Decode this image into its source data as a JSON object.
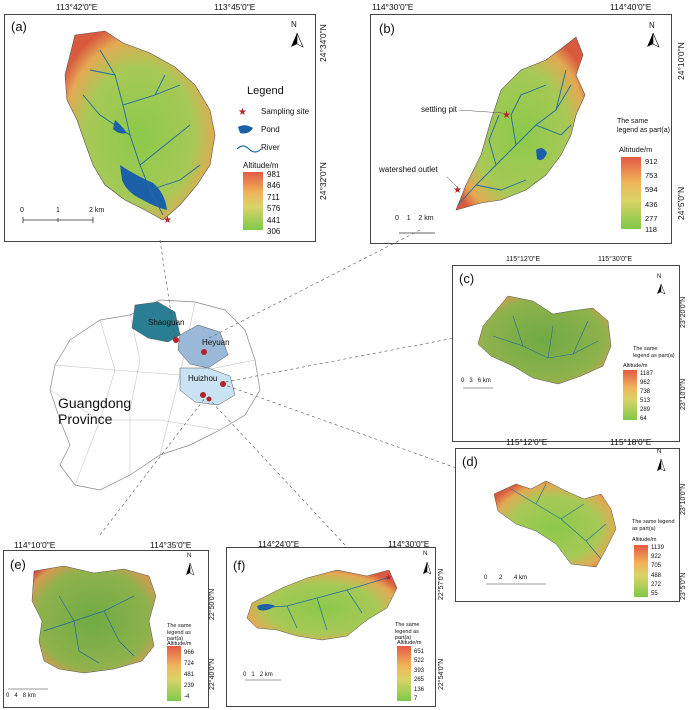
{
  "colors": {
    "ramp_high": "#e8604c",
    "ramp_mid": "#f3d36a",
    "ramp_low": "#7ccb45",
    "river": "#1f6aa5",
    "pond": "#1a5fa8",
    "star": "#b2232a",
    "shaoguan": "#2a7e93",
    "heyuan": "#9ab8d8",
    "huizhou": "#c9e3f4"
  },
  "panel_a": {
    "label": "(a)",
    "top_coords": [
      "113°42'0\"E",
      "113°45'0\"E"
    ],
    "right_coords": [
      "24°34'0\"N",
      "24°32'0\"N"
    ],
    "legend_title": "Legend",
    "legend_items": [
      "Sampling site",
      "Pond",
      "River"
    ],
    "altitude_title": "Altitude/m",
    "altitude_ticks": [
      "981",
      "846",
      "711",
      "576",
      "441",
      "306"
    ],
    "scale": [
      "0",
      "1",
      "2 km"
    ]
  },
  "panel_b": {
    "label": "(b)",
    "top_coords": [
      "114°30'0\"E",
      "114°40'0\"E"
    ],
    "right_coords": [
      "24°10'0\"N",
      "24°5'0\"N"
    ],
    "annotations": [
      "settling pit",
      "watershed outlet"
    ],
    "legend_note": "The same legend as part(a)",
    "altitude_title": "Altitude/m",
    "altitude_ticks": [
      "912",
      "753",
      "594",
      "436",
      "277",
      "118"
    ],
    "scale": [
      "0",
      "1",
      "2 km"
    ]
  },
  "panel_c": {
    "label": "(c)",
    "top_coords": [
      "115°12'0\"E",
      "115°30'0\"E"
    ],
    "right_coords": [
      "23°20'0\"N",
      "23°10'0\"N"
    ],
    "legend_note": "The same legend as part(a)",
    "altitude_title": "Altitude/m",
    "altitude_ticks": [
      "1187",
      "962",
      "738",
      "513",
      "289",
      "64"
    ],
    "scale": [
      "0",
      "3",
      "6 km"
    ]
  },
  "panel_d": {
    "label": "(d)",
    "top_coords": [
      "115°12'0\"E",
      "115°18'0\"E"
    ],
    "right_coords": [
      "23°10'0\"N",
      "23°5'0\"N"
    ],
    "legend_note": "The same legend as part(a)",
    "altitude_title": "Altitude/m",
    "altitude_ticks": [
      "1139",
      "922",
      "705",
      "488",
      "272",
      "55"
    ],
    "scale": [
      "0",
      "2",
      "4 km"
    ]
  },
  "panel_e": {
    "label": "(e)",
    "top_coords": [
      "114°10'0\"E",
      "114°35'0\"E"
    ],
    "right_coords": [
      "22°50'0\"N",
      "22°40'0\"N"
    ],
    "legend_note": "The same legend as part(a)",
    "altitude_title": "Altitude/m",
    "altitude_ticks": [
      "966",
      "724",
      "481",
      "239",
      "-4"
    ],
    "scale": [
      "0",
      "4",
      "8 km"
    ]
  },
  "panel_f": {
    "label": "(f)",
    "top_coords": [
      "114°24'0\"E",
      "114°30'0\"E"
    ],
    "right_coords": [
      "22°57'0\"N",
      "22°54'0\"N"
    ],
    "legend_note": "The same legend as part(a)",
    "altitude_title": "Altitude/m",
    "altitude_ticks": [
      "651",
      "522",
      "393",
      "265",
      "136",
      "7"
    ],
    "scale": [
      "0",
      "1",
      "2 km"
    ]
  },
  "province": {
    "title_line1": "Guangdong",
    "title_line2": "Province",
    "cities": [
      "Shaoguan",
      "Heyuan",
      "Huizhou"
    ]
  },
  "north_letter": "N"
}
